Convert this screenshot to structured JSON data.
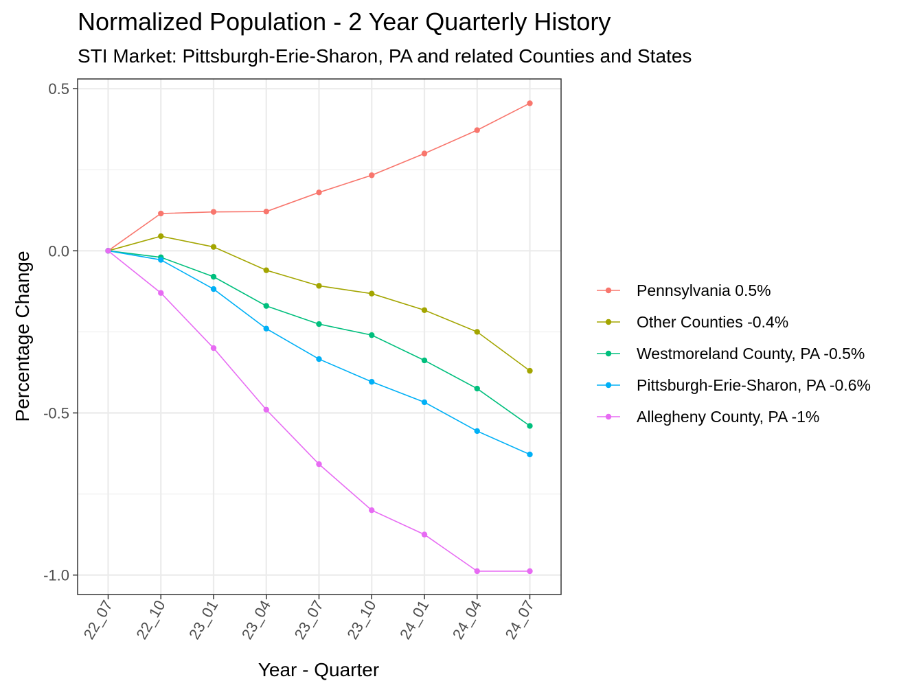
{
  "chart_data": {
    "type": "line",
    "title": "Normalized Population - 2 Year Quarterly History",
    "subtitle": "STI Market: Pittsburgh-Erie-Sharon, PA and related Counties and States",
    "xlabel": "Year - Quarter",
    "ylabel": "Percentage Change",
    "categories": [
      "22_07",
      "22_10",
      "23_01",
      "23_04",
      "23_07",
      "23_10",
      "24_01",
      "24_04",
      "24_07"
    ],
    "ylim": [
      -1.06,
      0.53
    ],
    "yticks": [
      -1.0,
      -0.5,
      0.0,
      0.5
    ],
    "ytick_labels": [
      "-1.0",
      "-0.5",
      "0.0",
      "0.5"
    ],
    "grid": true,
    "legend_position": "right",
    "series": [
      {
        "name": "Pennsylvania 0.5%",
        "color": "#F8766D",
        "values": [
          0,
          0.115,
          0.12,
          0.121,
          0.18,
          0.233,
          0.3,
          0.372,
          0.455
        ]
      },
      {
        "name": "Other Counties -0.4%",
        "color": "#A3A500",
        "values": [
          0,
          0.045,
          0.012,
          -0.06,
          -0.108,
          -0.132,
          -0.183,
          -0.25,
          -0.37
        ]
      },
      {
        "name": "Westmoreland County, PA -0.5%",
        "color": "#00BF7D",
        "values": [
          0,
          -0.02,
          -0.08,
          -0.17,
          -0.226,
          -0.26,
          -0.338,
          -0.425,
          -0.54
        ]
      },
      {
        "name": "Pittsburgh-Erie-Sharon, PA -0.6%",
        "color": "#00B0F6",
        "values": [
          0,
          -0.028,
          -0.118,
          -0.24,
          -0.334,
          -0.404,
          -0.467,
          -0.556,
          -0.628
        ]
      },
      {
        "name": "Allegheny County, PA -1%",
        "color": "#E76BF3",
        "values": [
          0,
          -0.13,
          -0.3,
          -0.49,
          -0.658,
          -0.8,
          -0.875,
          -0.988,
          -0.988
        ]
      }
    ]
  }
}
